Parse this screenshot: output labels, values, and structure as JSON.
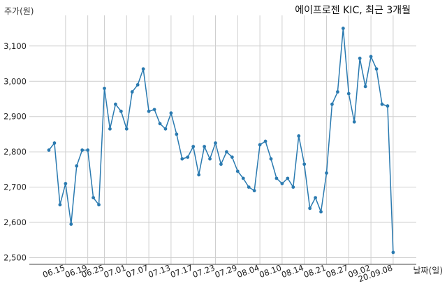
{
  "chart_data": {
    "type": "line",
    "title": "에이프로젠 KIC, 최근 3개월",
    "ylabel": "주가(원)",
    "xlabel": "날짜(일)",
    "ylim": [
      2485,
      3165
    ],
    "yticks": [
      2500,
      2600,
      2700,
      2800,
      2900,
      3000,
      3100
    ],
    "ytick_labels": [
      "2,500",
      "2,600",
      "2,700",
      "2,800",
      "2,900",
      "3,000",
      "3,100"
    ],
    "xtick_labels": [
      "06.15",
      "06.19",
      "06.25",
      "07.01",
      "07.07",
      "07.13",
      "07.17",
      "07.23",
      "07.29",
      "08.04",
      "08.10",
      "08.14",
      "08.21",
      "08.27",
      "09.02",
      "20.09.08"
    ],
    "xtick_positions": [
      3,
      7,
      10,
      14,
      18,
      22,
      26,
      30,
      34,
      38,
      42,
      46,
      50,
      54,
      58,
      62
    ],
    "grid": true,
    "color": "#2a7ab0",
    "series": [
      {
        "values": [
          2805,
          2825,
          2650,
          2710,
          2595,
          2760,
          2805,
          2805,
          2670,
          2650,
          2980,
          2865,
          2935,
          2915,
          2865,
          2970,
          2990,
          3035,
          2915,
          2920,
          2880,
          2865,
          2910,
          2850,
          2780,
          2785,
          2815,
          2735,
          2815,
          2780,
          2825,
          2765,
          2800,
          2785,
          2745,
          2725,
          2700,
          2690,
          2820,
          2830,
          2780,
          2725,
          2710,
          2725,
          2700,
          2845,
          2765,
          2640,
          2670,
          2630,
          2740,
          2935,
          2970,
          3150,
          2965,
          2885,
          3065,
          2985,
          3070,
          3035,
          2935,
          2930,
          2515
        ]
      }
    ]
  }
}
